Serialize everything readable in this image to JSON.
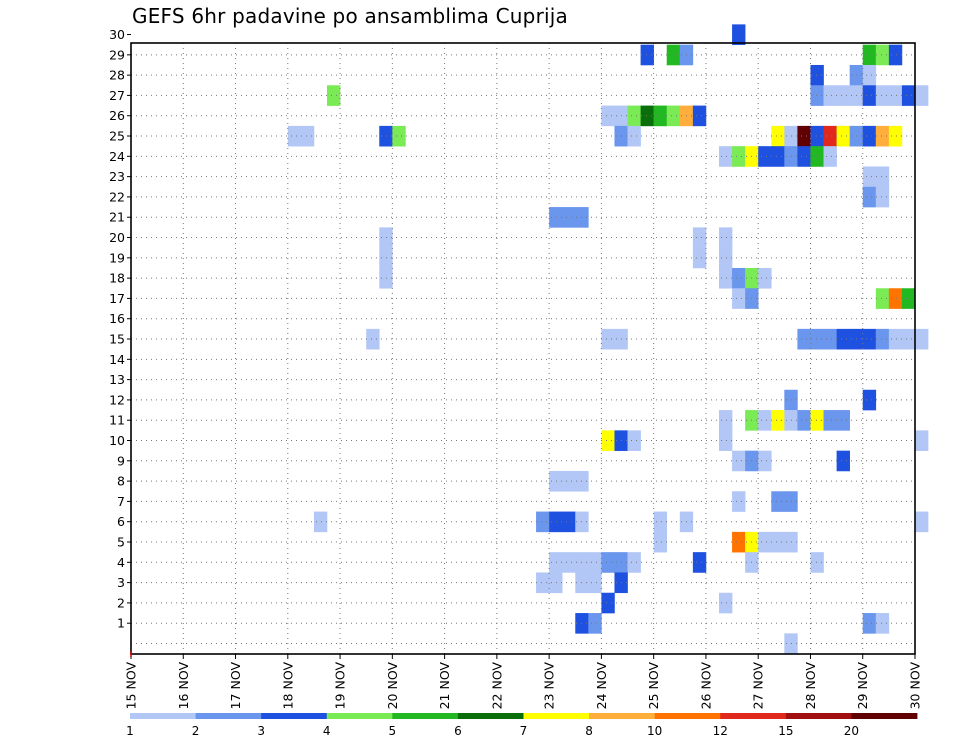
{
  "title": "GEFS 6hr padavine po ansamblima Cuprija",
  "chart_data": {
    "type": "heatmap",
    "title": "GEFS 6hr padavine po ansamblima Cuprija",
    "xlabel": "",
    "ylabel": "",
    "x_tick_labels": [
      "15 NOV",
      "16 NOV",
      "17 NOV",
      "18 NOV",
      "19 NOV",
      "20 NOV",
      "21 NOV",
      "22 NOV",
      "23 NOV",
      "24 NOV",
      "25 NOV",
      "26 NOV",
      "27 NOV",
      "28 NOV",
      "29 NOV",
      "30 NOV"
    ],
    "x_range": [
      "15 NOV",
      "30 NOV"
    ],
    "x_step_hours": 6,
    "y_tick_labels": [
      "1",
      "2",
      "3",
      "4",
      "5",
      "6",
      "7",
      "8",
      "9",
      "10",
      "11",
      "12",
      "13",
      "14",
      "15",
      "16",
      "17",
      "18",
      "19",
      "20",
      "21",
      "22",
      "23",
      "24",
      "25",
      "26",
      "27",
      "28",
      "29",
      "30"
    ],
    "y_range": [
      0,
      30
    ],
    "grid": true,
    "colorbar": {
      "placement": "bottom",
      "levels": [
        1,
        2,
        3,
        4,
        5,
        6,
        7,
        8,
        10,
        12,
        15,
        20
      ],
      "colors": [
        "#b3c7f7",
        "#6b96ee",
        "#1f51e0",
        "#7aea55",
        "#21b821",
        "#0a6e0a",
        "#ffff00",
        "#ffae3b",
        "#ff7300",
        "#e0281c",
        "#a01010",
        "#600000"
      ]
    },
    "cells": [
      [
        30,
        46,
        2
      ],
      [
        29,
        39,
        2
      ],
      [
        29,
        41,
        4
      ],
      [
        29,
        42,
        1
      ],
      [
        29,
        56,
        4
      ],
      [
        29,
        57,
        3
      ],
      [
        29,
        58,
        2
      ],
      [
        28,
        52,
        2
      ],
      [
        28,
        55,
        1
      ],
      [
        28,
        56,
        0
      ],
      [
        27,
        15,
        3
      ],
      [
        27,
        52,
        1
      ],
      [
        27,
        53,
        0
      ],
      [
        27,
        54,
        0
      ],
      [
        27,
        55,
        0
      ],
      [
        27,
        56,
        2
      ],
      [
        27,
        57,
        0
      ],
      [
        27,
        58,
        0
      ],
      [
        27,
        59,
        2
      ],
      [
        27,
        60,
        0
      ],
      [
        26,
        36,
        0
      ],
      [
        26,
        37,
        0
      ],
      [
        26,
        38,
        3
      ],
      [
        26,
        39,
        5
      ],
      [
        26,
        40,
        4
      ],
      [
        26,
        41,
        3
      ],
      [
        26,
        42,
        7
      ],
      [
        26,
        43,
        2
      ],
      [
        25,
        12,
        0
      ],
      [
        25,
        13,
        0
      ],
      [
        25,
        19,
        2
      ],
      [
        25,
        20,
        3
      ],
      [
        25,
        37,
        1
      ],
      [
        25,
        38,
        0
      ],
      [
        25,
        49,
        6
      ],
      [
        25,
        50,
        0
      ],
      [
        25,
        51,
        11
      ],
      [
        25,
        52,
        2
      ],
      [
        25,
        53,
        9
      ],
      [
        25,
        54,
        6
      ],
      [
        25,
        55,
        1
      ],
      [
        25,
        56,
        2
      ],
      [
        25,
        57,
        7
      ],
      [
        25,
        58,
        6
      ],
      [
        24,
        45,
        0
      ],
      [
        24,
        46,
        3
      ],
      [
        24,
        47,
        6
      ],
      [
        24,
        48,
        2
      ],
      [
        24,
        49,
        2
      ],
      [
        24,
        50,
        1
      ],
      [
        24,
        51,
        2
      ],
      [
        24,
        52,
        4
      ],
      [
        24,
        53,
        0
      ],
      [
        23,
        56,
        0
      ],
      [
        23,
        57,
        0
      ],
      [
        22,
        56,
        1
      ],
      [
        22,
        57,
        0
      ],
      [
        21,
        32,
        1
      ],
      [
        21,
        33,
        1
      ],
      [
        21,
        34,
        1
      ],
      [
        20,
        19,
        0
      ],
      [
        20,
        43,
        0
      ],
      [
        20,
        45,
        0
      ],
      [
        19,
        19,
        0
      ],
      [
        19,
        43,
        0
      ],
      [
        19,
        45,
        0
      ],
      [
        18,
        19,
        0
      ],
      [
        18,
        45,
        0
      ],
      [
        18,
        46,
        1
      ],
      [
        18,
        47,
        3
      ],
      [
        18,
        48,
        0
      ],
      [
        17,
        46,
        0
      ],
      [
        17,
        47,
        1
      ],
      [
        17,
        57,
        3
      ],
      [
        17,
        58,
        8
      ],
      [
        17,
        59,
        4
      ],
      [
        15,
        18,
        0
      ],
      [
        15,
        36,
        0
      ],
      [
        15,
        37,
        0
      ],
      [
        15,
        51,
        1
      ],
      [
        15,
        52,
        1
      ],
      [
        15,
        53,
        1
      ],
      [
        15,
        54,
        2
      ],
      [
        15,
        55,
        2
      ],
      [
        15,
        56,
        2
      ],
      [
        15,
        57,
        1
      ],
      [
        15,
        58,
        0
      ],
      [
        15,
        59,
        0
      ],
      [
        15,
        60,
        0
      ],
      [
        12,
        50,
        1
      ],
      [
        12,
        56,
        2
      ],
      [
        11,
        45,
        0
      ],
      [
        11,
        47,
        3
      ],
      [
        11,
        48,
        0
      ],
      [
        11,
        49,
        6
      ],
      [
        11,
        50,
        0
      ],
      [
        11,
        51,
        1
      ],
      [
        11,
        52,
        6
      ],
      [
        11,
        53,
        1
      ],
      [
        11,
        54,
        1
      ],
      [
        10,
        36,
        6
      ],
      [
        10,
        37,
        2
      ],
      [
        10,
        38,
        0
      ],
      [
        10,
        45,
        0
      ],
      [
        10,
        60,
        0
      ],
      [
        9,
        46,
        0
      ],
      [
        9,
        47,
        1
      ],
      [
        9,
        48,
        0
      ],
      [
        9,
        54,
        2
      ],
      [
        8,
        32,
        0
      ],
      [
        8,
        33,
        0
      ],
      [
        8,
        34,
        0
      ],
      [
        7,
        46,
        0
      ],
      [
        7,
        49,
        1
      ],
      [
        7,
        50,
        1
      ],
      [
        6,
        14,
        0
      ],
      [
        6,
        31,
        1
      ],
      [
        6,
        32,
        2
      ],
      [
        6,
        33,
        2
      ],
      [
        6,
        34,
        0
      ],
      [
        6,
        40,
        0
      ],
      [
        6,
        42,
        0
      ],
      [
        6,
        60,
        0
      ],
      [
        5,
        40,
        0
      ],
      [
        5,
        46,
        8
      ],
      [
        5,
        47,
        6
      ],
      [
        5,
        48,
        0
      ],
      [
        5,
        49,
        0
      ],
      [
        5,
        50,
        0
      ],
      [
        4,
        32,
        0
      ],
      [
        4,
        33,
        0
      ],
      [
        4,
        34,
        0
      ],
      [
        4,
        35,
        0
      ],
      [
        4,
        36,
        1
      ],
      [
        4,
        37,
        1
      ],
      [
        4,
        38,
        0
      ],
      [
        4,
        43,
        2
      ],
      [
        4,
        47,
        0
      ],
      [
        4,
        52,
        0
      ],
      [
        3,
        31,
        0
      ],
      [
        3,
        32,
        0
      ],
      [
        3,
        34,
        0
      ],
      [
        3,
        35,
        0
      ],
      [
        3,
        37,
        2
      ],
      [
        2,
        36,
        2
      ],
      [
        2,
        45,
        0
      ],
      [
        1,
        34,
        2
      ],
      [
        1,
        35,
        1
      ],
      [
        1,
        56,
        1
      ],
      [
        1,
        57,
        0
      ],
      [
        0,
        50,
        0
      ]
    ]
  }
}
